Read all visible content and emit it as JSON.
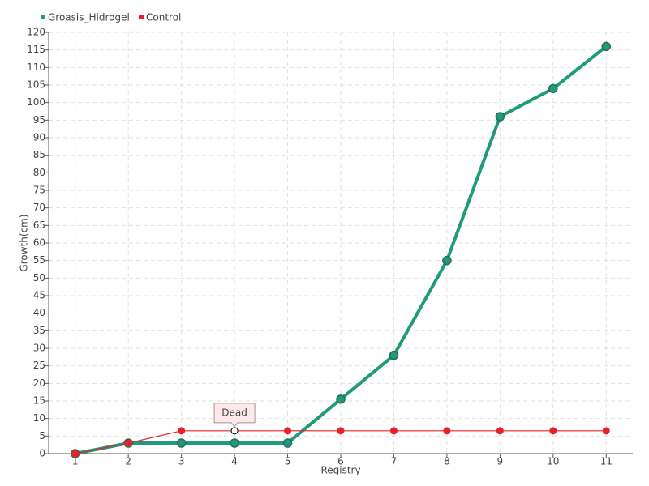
{
  "chart_data": {
    "type": "line",
    "x_label": "Registry",
    "y_label": "Growth(cm)",
    "categories": [
      "1",
      "2",
      "3",
      "4",
      "5",
      "6",
      "7",
      "8",
      "9",
      "10",
      "11"
    ],
    "series": [
      {
        "name": "Groasis_Hidrogel",
        "color": "#1f9a7a",
        "values": [
          0,
          3,
          3,
          3,
          3,
          15.5,
          28,
          55,
          96,
          104,
          116
        ]
      },
      {
        "name": "Control",
        "color": "#e8202a",
        "values": [
          0,
          3,
          6.5,
          6.5,
          6.5,
          6.5,
          6.5,
          6.5,
          6.5,
          6.5,
          6.5
        ]
      }
    ],
    "ylim": [
      0,
      120
    ],
    "yticks": [
      0,
      5,
      10,
      15,
      20,
      25,
      30,
      35,
      40,
      45,
      50,
      55,
      60,
      65,
      70,
      75,
      80,
      85,
      90,
      95,
      100,
      105,
      110,
      115,
      120
    ],
    "grid": true,
    "legend": "top-left",
    "annotation": {
      "text": "Dead",
      "series": "Control",
      "category": "4"
    }
  }
}
